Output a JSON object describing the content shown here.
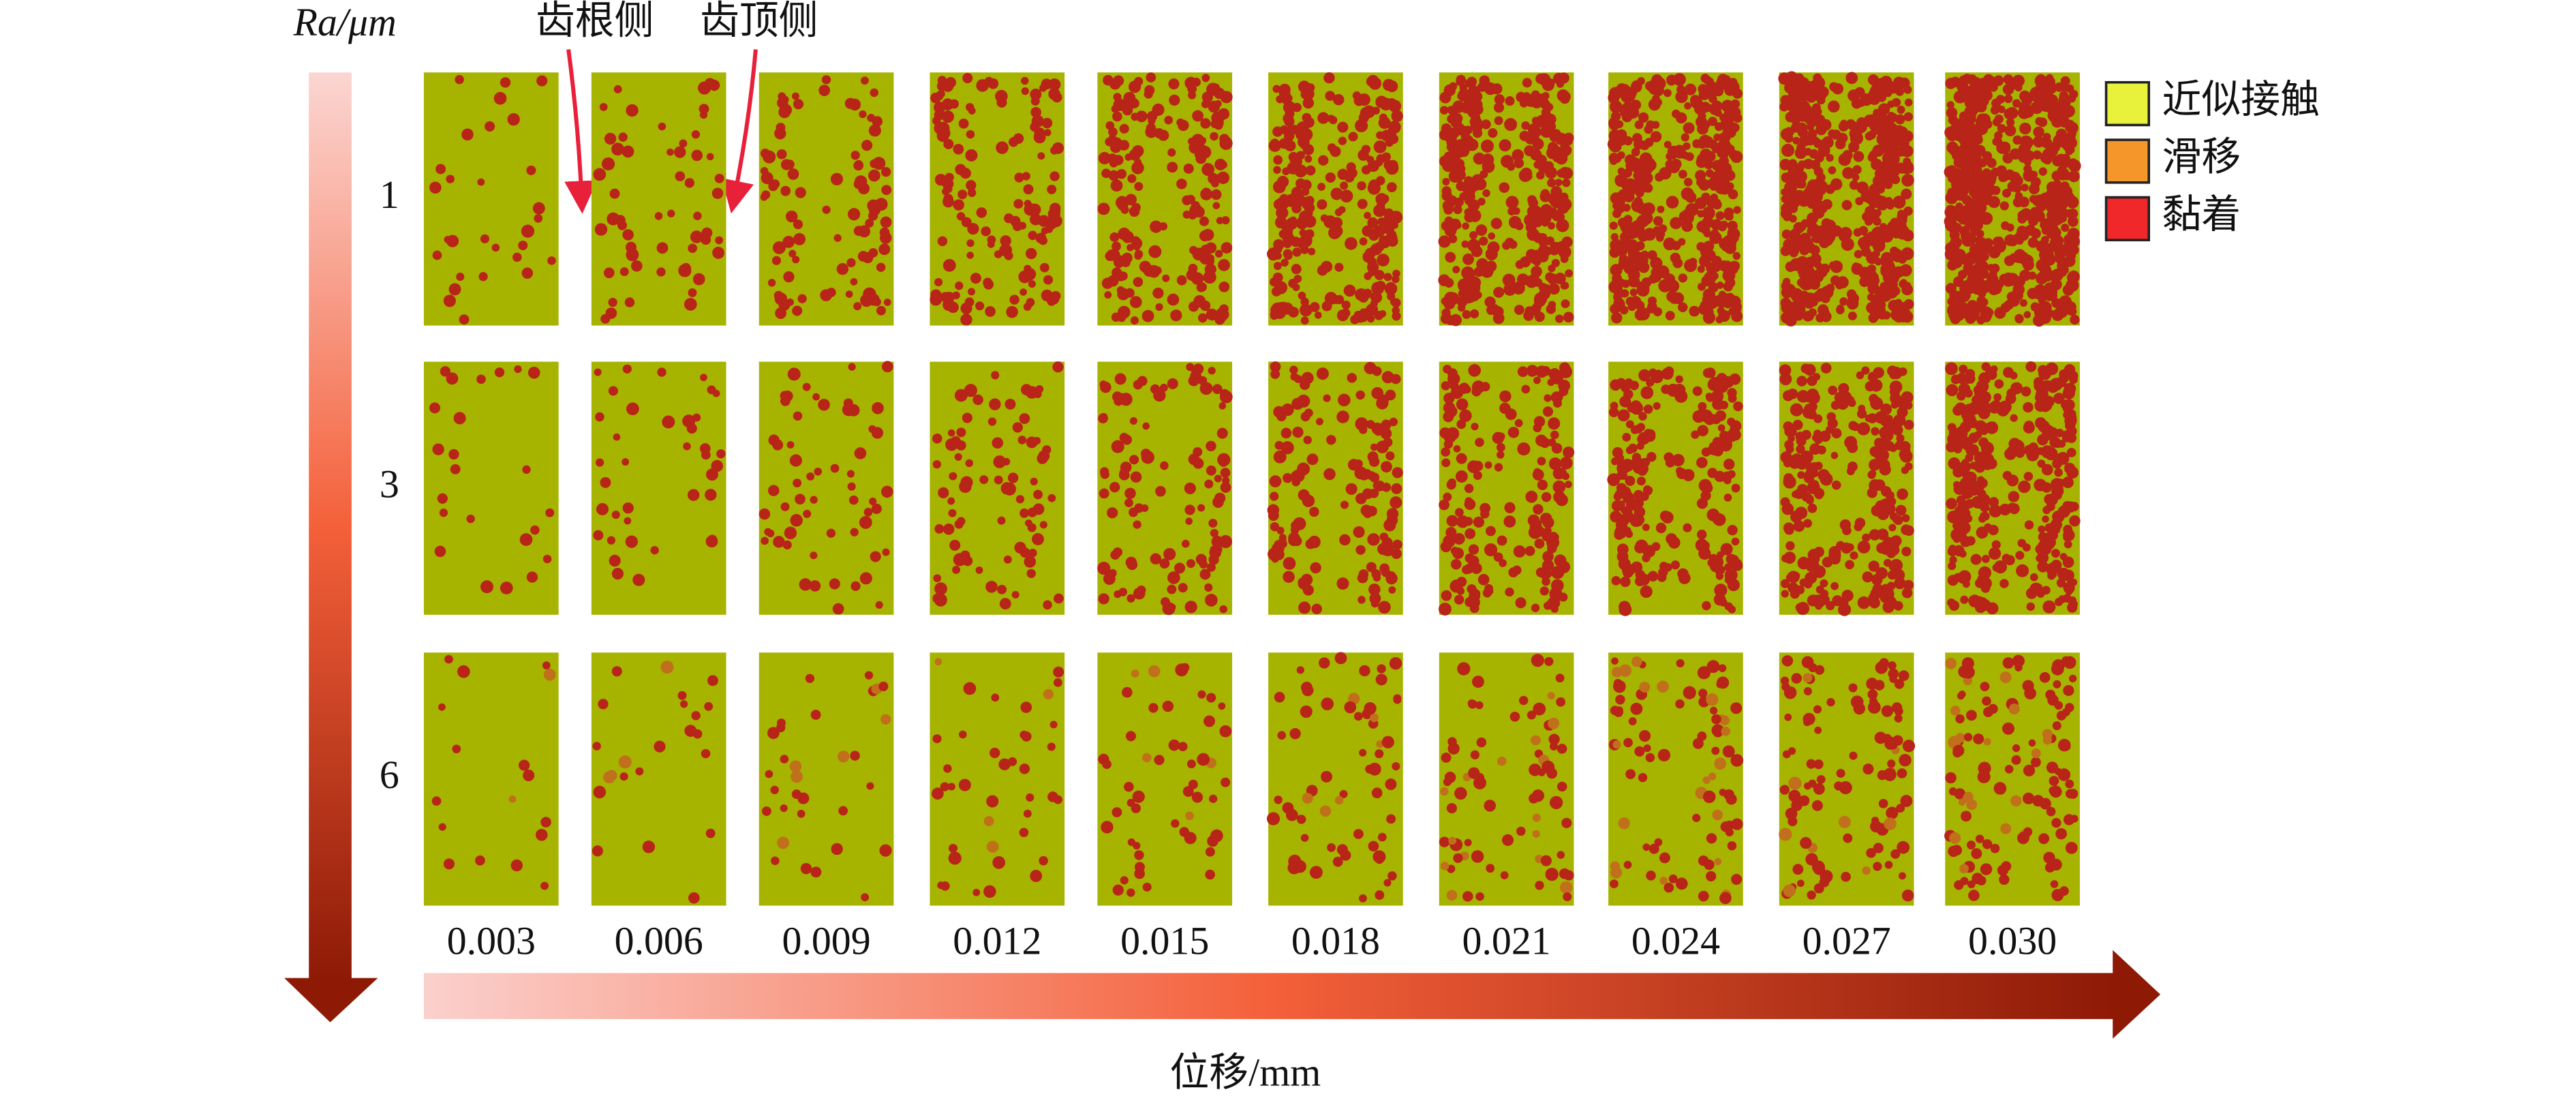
{
  "figure": {
    "y_axis_label": "Ra/μm",
    "x_axis_label": "位移/mm",
    "rows": [
      "1",
      "3",
      "6"
    ],
    "columns": [
      "0.003",
      "0.006",
      "0.009",
      "0.012",
      "0.015",
      "0.018",
      "0.021",
      "0.024",
      "0.027",
      "0.030"
    ],
    "annotations": [
      "齿根侧",
      "齿顶侧"
    ],
    "legend": [
      {
        "label": "近似接触",
        "color": "#e8f23a"
      },
      {
        "label": "滑移",
        "color": "#f5962a"
      },
      {
        "label": "黏着",
        "color": "#f0282a"
      }
    ]
  }
}
